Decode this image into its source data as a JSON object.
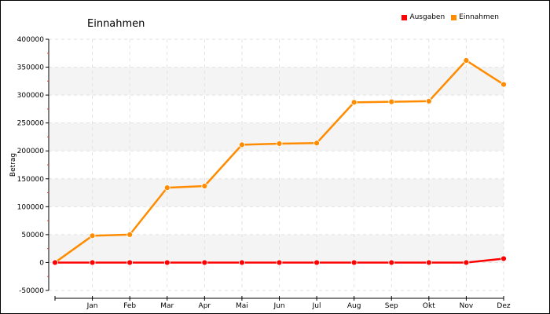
{
  "chart_data": {
    "type": "line",
    "title": "Einnahmen",
    "xlabel": "",
    "ylabel": "Betrag",
    "categories": [
      "",
      "Jan",
      "Feb",
      "Mar",
      "Apr",
      "Mai",
      "Jun",
      "Jul",
      "Aug",
      "Sep",
      "Okt",
      "Nov",
      "Dez"
    ],
    "ylim": [
      -50000,
      400000
    ],
    "yticks": [
      400000,
      350000,
      300000,
      250000,
      200000,
      150000,
      100000,
      50000,
      0,
      -50000
    ],
    "grid": true,
    "legend_position": "top-right",
    "series": [
      {
        "name": "Ausgaben",
        "color": "#ff0000",
        "values": [
          0,
          0,
          0,
          0,
          0,
          0,
          0,
          0,
          0,
          0,
          0,
          0,
          7000
        ]
      },
      {
        "name": "Einnahmen",
        "color": "#ff8c00",
        "values": [
          0,
          48000,
          50000,
          134000,
          137000,
          211000,
          213000,
          214000,
          287000,
          288000,
          289000,
          362000,
          319000
        ]
      }
    ]
  }
}
